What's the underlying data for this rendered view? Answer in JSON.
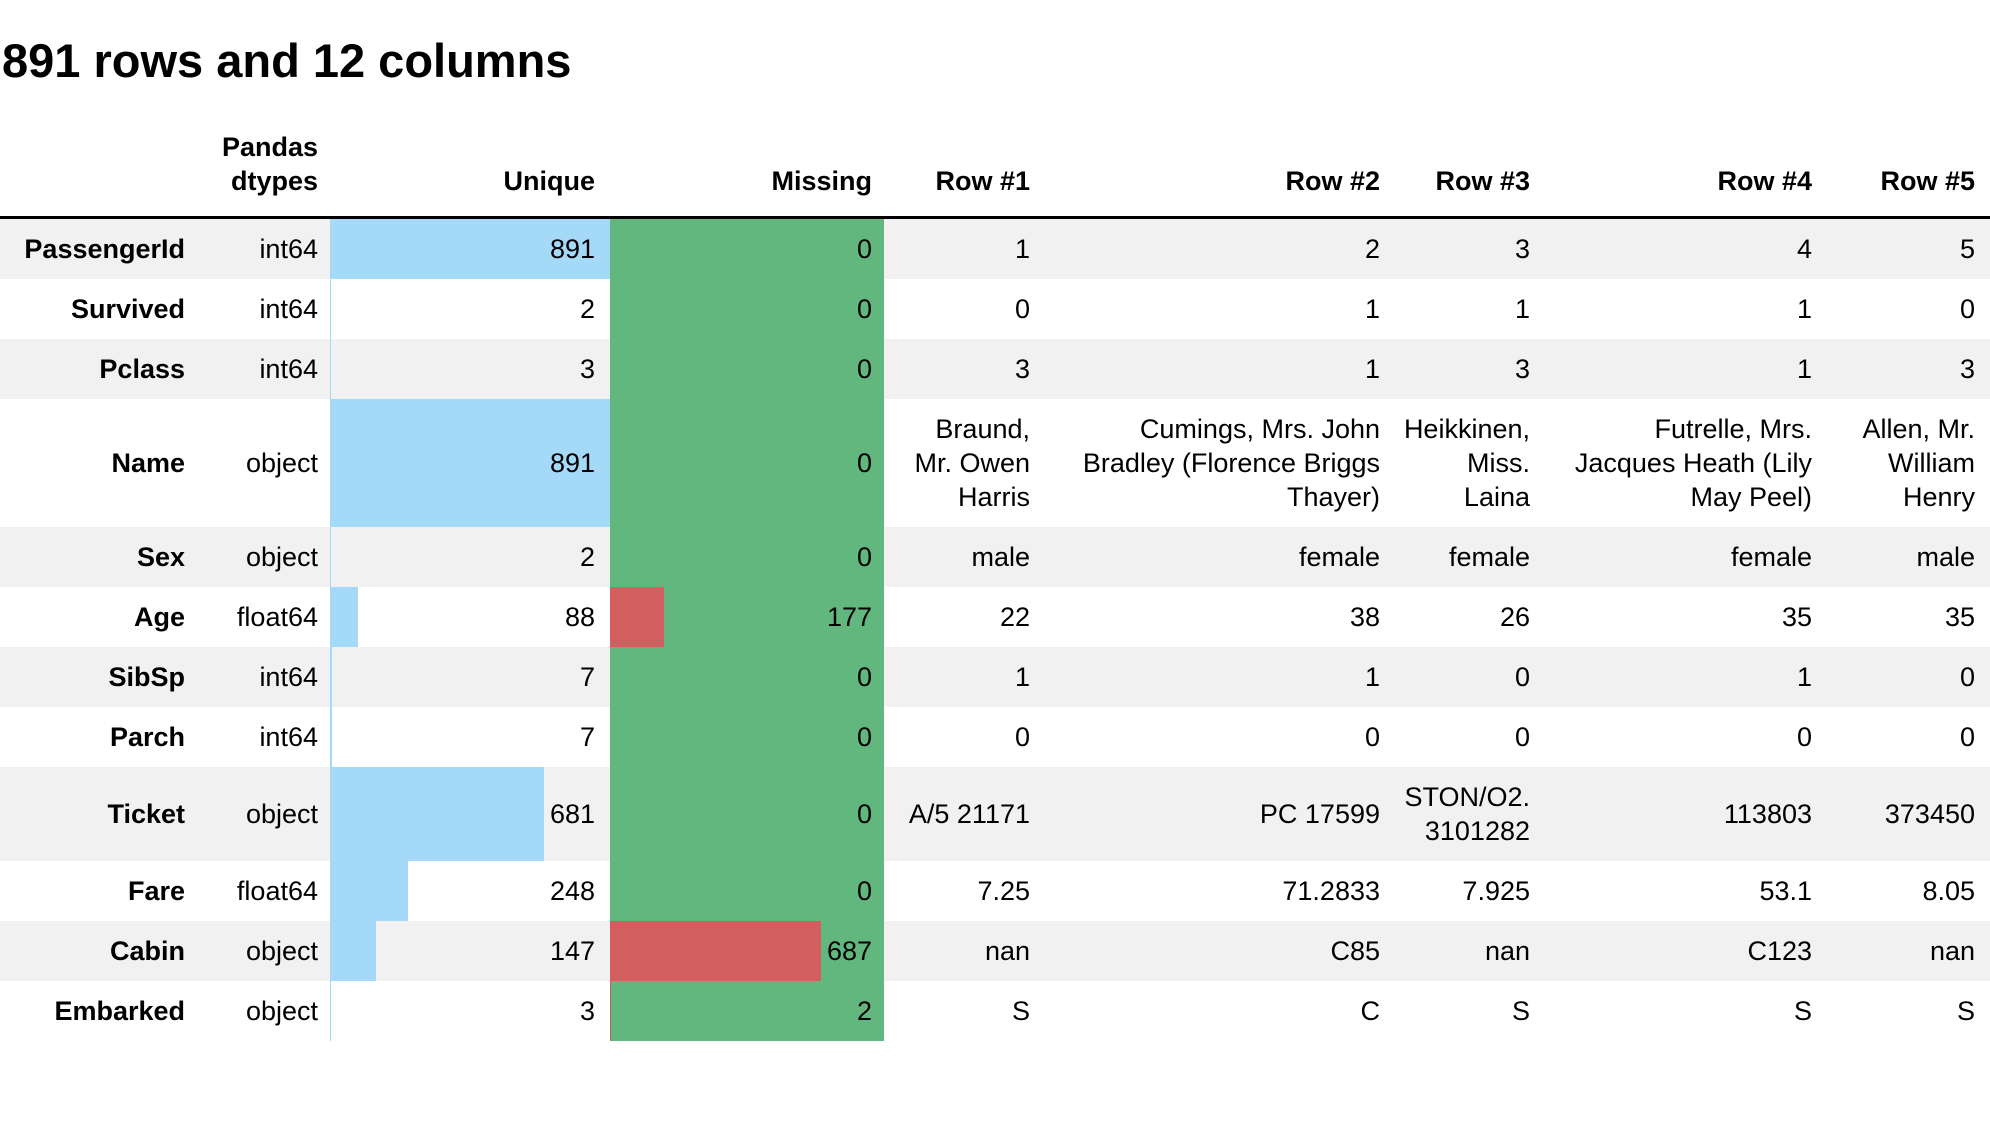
{
  "chart_data": {
    "type": "table",
    "title": "891 rows and 12 columns",
    "total_rows": 891,
    "n_columns": 12,
    "column_headers": {
      "label": "",
      "dtype": "Pandas dtypes",
      "unique": "Unique",
      "missing": "Missing"
    },
    "row_headers": [
      "Row #1",
      "Row #2",
      "Row #3",
      "Row #4",
      "Row #5"
    ],
    "bar_encoding": {
      "unique_bar_scale_max": 891,
      "missing_bar_scale_max": 891
    },
    "colors": {
      "unique_bar": "#A5D9F8",
      "missing_background": "#61B77D",
      "missing_bar": "#D25E5F",
      "row_stripe": "#F1F1F2",
      "header_border": "#000000",
      "text": "#000000"
    },
    "rows": [
      {
        "label": "PassengerId",
        "dtype": "int64",
        "unique": 891,
        "missing": 0,
        "values": [
          "1",
          "2",
          "3",
          "4",
          "5"
        ]
      },
      {
        "label": "Survived",
        "dtype": "int64",
        "unique": 2,
        "missing": 0,
        "values": [
          "0",
          "1",
          "1",
          "1",
          "0"
        ]
      },
      {
        "label": "Pclass",
        "dtype": "int64",
        "unique": 3,
        "missing": 0,
        "values": [
          "3",
          "1",
          "3",
          "1",
          "3"
        ]
      },
      {
        "label": "Name",
        "dtype": "object",
        "unique": 891,
        "missing": 0,
        "values": [
          "Braund, Mr. Owen Harris",
          "Cumings, Mrs. John Bradley (Florence Briggs Thayer)",
          "Heikkinen, Miss. Laina",
          "Futrelle, Mrs. Jacques Heath (Lily May Peel)",
          "Allen, Mr. William Henry"
        ]
      },
      {
        "label": "Sex",
        "dtype": "object",
        "unique": 2,
        "missing": 0,
        "values": [
          "male",
          "female",
          "female",
          "female",
          "male"
        ]
      },
      {
        "label": "Age",
        "dtype": "float64",
        "unique": 88,
        "missing": 177,
        "values": [
          "22",
          "38",
          "26",
          "35",
          "35"
        ]
      },
      {
        "label": "SibSp",
        "dtype": "int64",
        "unique": 7,
        "missing": 0,
        "values": [
          "1",
          "1",
          "0",
          "1",
          "0"
        ]
      },
      {
        "label": "Parch",
        "dtype": "int64",
        "unique": 7,
        "missing": 0,
        "values": [
          "0",
          "0",
          "0",
          "0",
          "0"
        ]
      },
      {
        "label": "Ticket",
        "dtype": "object",
        "unique": 681,
        "missing": 0,
        "values": [
          "A/5 21171",
          "PC 17599",
          "STON/O2. 3101282",
          "113803",
          "373450"
        ]
      },
      {
        "label": "Fare",
        "dtype": "float64",
        "unique": 248,
        "missing": 0,
        "values": [
          "7.25",
          "71.2833",
          "7.925",
          "53.1",
          "8.05"
        ]
      },
      {
        "label": "Cabin",
        "dtype": "object",
        "unique": 147,
        "missing": 687,
        "values": [
          "nan",
          "C85",
          "nan",
          "C123",
          "nan"
        ]
      },
      {
        "label": "Embarked",
        "dtype": "object",
        "unique": 3,
        "missing": 2,
        "values": [
          "S",
          "C",
          "S",
          "S",
          "S"
        ]
      }
    ]
  }
}
